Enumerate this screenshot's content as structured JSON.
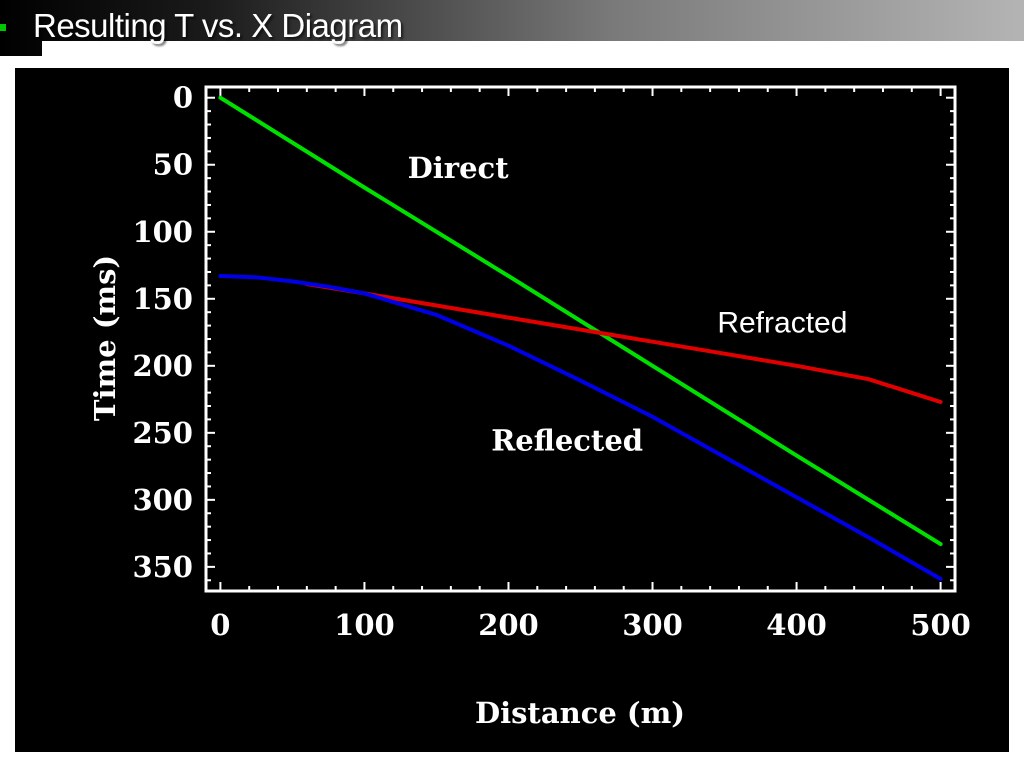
{
  "slide": {
    "title": "Resulting T vs. X Diagram"
  },
  "chart_data": {
    "type": "line",
    "xlabel": "Distance (m)",
    "ylabel": "Time (ms)",
    "xlim": [
      -10,
      510
    ],
    "ylim": [
      368,
      -8
    ],
    "y_inverted": true,
    "x_ticks": [
      0,
      100,
      200,
      300,
      400,
      500
    ],
    "y_ticks": [
      0,
      50,
      100,
      150,
      200,
      250,
      300,
      350
    ],
    "grid": false,
    "background": "#000000",
    "axis_color": "#ffffff",
    "series": [
      {
        "name": "Direct",
        "color": "#00e000",
        "x": [
          0,
          100,
          200,
          300,
          400,
          500
        ],
        "y": [
          0,
          67,
          133,
          200,
          267,
          333
        ]
      },
      {
        "name": "Refracted",
        "color": "#e00000",
        "x": [
          60,
          100,
          150,
          200,
          250,
          300,
          350,
          400,
          450,
          500
        ],
        "y": [
          139,
          146,
          155,
          164,
          173,
          182,
          191,
          200,
          210,
          227
        ]
      },
      {
        "name": "Reflected",
        "color": "#0000e6",
        "x": [
          0,
          25,
          50,
          75,
          100,
          150,
          200,
          250,
          300,
          350,
          400,
          450,
          500
        ],
        "y": [
          133,
          134,
          137,
          141,
          146,
          162,
          185,
          211,
          238,
          268,
          298,
          328,
          359
        ]
      }
    ],
    "annotations": [
      {
        "text": "Direct",
        "x": 130,
        "y": 60,
        "style": "serif"
      },
      {
        "text": "Refracted",
        "x": 345,
        "y": 175,
        "style": "sans"
      },
      {
        "text": "Reflected",
        "x": 188,
        "y": 263,
        "style": "serif"
      }
    ]
  }
}
